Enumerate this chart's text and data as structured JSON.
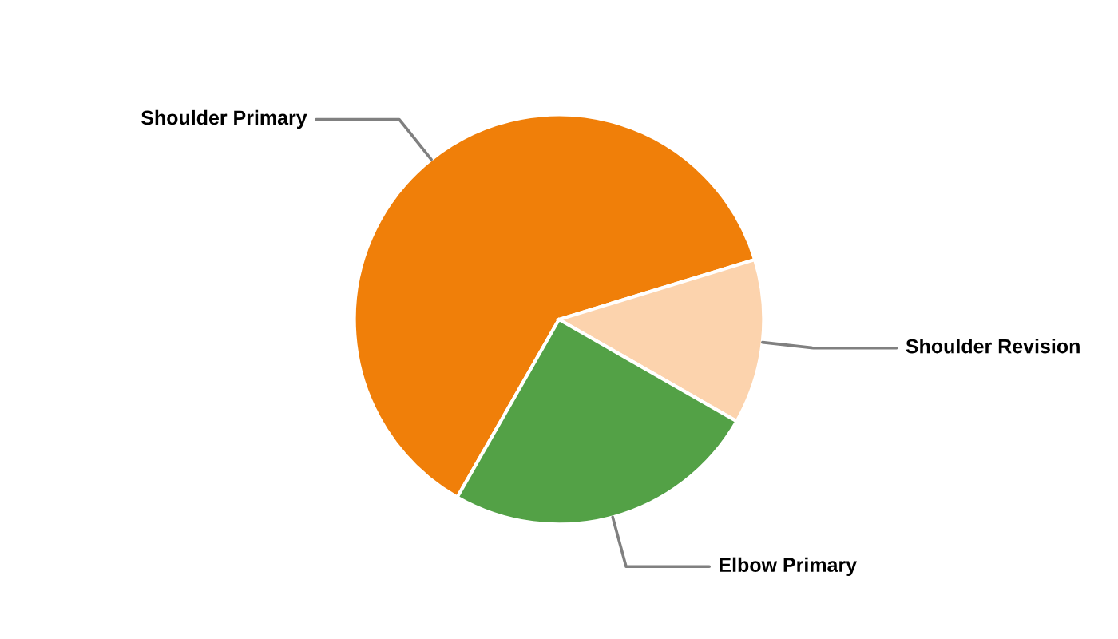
{
  "chart_data": {
    "type": "pie",
    "categories": [
      "Shoulder Primary",
      "Shoulder Revision",
      "Elbow Primary"
    ],
    "values": [
      62,
      13,
      25
    ],
    "colors": [
      "#f07f09",
      "#fcd3ad",
      "#53a146"
    ],
    "legend": false
  }
}
